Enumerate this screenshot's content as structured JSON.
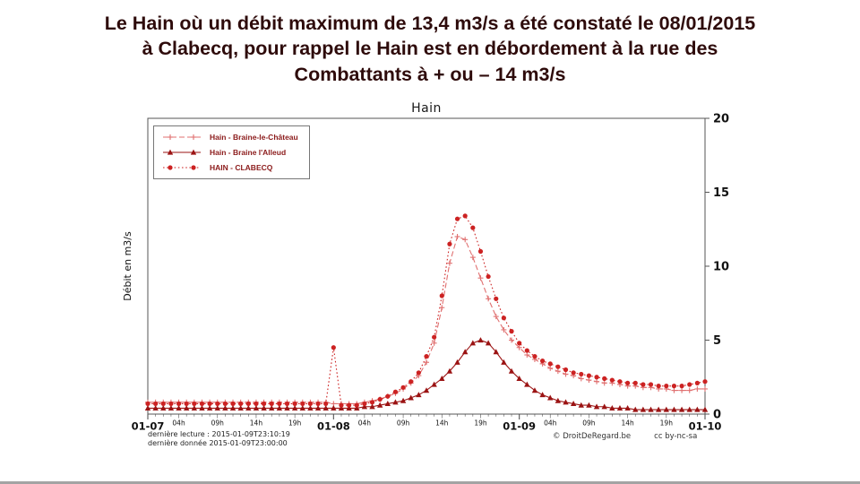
{
  "title": {
    "color": "#2e0b0b",
    "lines": [
      "Le Hain où un débit maximum de 13,4 m3/s a été constaté le 08/01/2015",
      "à Clabecq, pour rappel le Hain est en débordement à la rue des",
      "Combattants à + ou – 14 m3/s"
    ]
  },
  "footer": {
    "last_reading": "dernière lecture : 2015-01-09T23:10:19",
    "last_data": "dernière donnée  2015-01-09T23:00:00",
    "copyright": "© DroitDeRegard.be",
    "license": "cc by-nc-sa"
  },
  "chart_data": {
    "type": "line",
    "title": "Hain",
    "xlabel": "",
    "ylabel": "Débit en m3/s",
    "ylim": [
      0,
      20
    ],
    "x_unit": "hours from 2015-01-07 00:00, one value per hour",
    "x_range_hours": [
      0,
      72
    ],
    "grid": false,
    "legend_position": "top-left",
    "legend_text_color": "#8b1a1a",
    "x_axis": {
      "major_ticks": [
        {
          "label": "01-07",
          "hour": 0
        },
        {
          "label": "01-08",
          "hour": 24
        },
        {
          "label": "01-09",
          "hour": 48
        },
        {
          "label": "01-10",
          "hour": 72
        }
      ],
      "minor_labels": [
        {
          "label": "04h",
          "offset": 4
        },
        {
          "label": "09h",
          "offset": 9
        },
        {
          "label": "14h",
          "offset": 14
        },
        {
          "label": "19h",
          "offset": 19
        }
      ]
    },
    "y_axis": {
      "ticks": [
        0,
        5,
        10,
        15,
        20
      ],
      "side": "right"
    },
    "series": [
      {
        "name": "Hain - Braine-le-Château",
        "color": "#e07070",
        "marker": "plus",
        "line": "dashed",
        "values": [
          0.8,
          0.8,
          0.8,
          0.8,
          0.8,
          0.8,
          0.8,
          0.8,
          0.8,
          0.8,
          0.8,
          0.8,
          0.8,
          0.8,
          0.8,
          0.8,
          0.8,
          0.8,
          0.8,
          0.8,
          0.8,
          0.8,
          0.8,
          0.8,
          0.7,
          0.7,
          0.7,
          0.7,
          0.8,
          0.9,
          1.0,
          1.2,
          1.4,
          1.7,
          2.1,
          2.6,
          3.5,
          4.8,
          7.2,
          10.2,
          12.0,
          11.8,
          10.6,
          9.2,
          7.8,
          6.6,
          5.7,
          5.0,
          4.5,
          4.0,
          3.7,
          3.4,
          3.1,
          2.9,
          2.7,
          2.6,
          2.4,
          2.3,
          2.2,
          2.1,
          2.1,
          2.0,
          1.9,
          1.9,
          1.8,
          1.8,
          1.7,
          1.7,
          1.6,
          1.6,
          1.6,
          1.7,
          1.7
        ]
      },
      {
        "name": "Hain - Braine l'Alleud",
        "color": "#9b1313",
        "marker": "triangle",
        "line": "solid",
        "values": [
          0.4,
          0.4,
          0.4,
          0.4,
          0.4,
          0.4,
          0.4,
          0.4,
          0.4,
          0.4,
          0.4,
          0.4,
          0.4,
          0.4,
          0.4,
          0.4,
          0.4,
          0.4,
          0.4,
          0.4,
          0.4,
          0.4,
          0.4,
          0.4,
          0.4,
          0.4,
          0.4,
          0.4,
          0.5,
          0.5,
          0.6,
          0.7,
          0.8,
          0.9,
          1.1,
          1.3,
          1.6,
          2.0,
          2.4,
          2.9,
          3.5,
          4.2,
          4.8,
          5.0,
          4.8,
          4.2,
          3.5,
          2.9,
          2.4,
          2.0,
          1.6,
          1.3,
          1.1,
          0.9,
          0.8,
          0.7,
          0.6,
          0.6,
          0.5,
          0.5,
          0.4,
          0.4,
          0.4,
          0.3,
          0.3,
          0.3,
          0.3,
          0.3,
          0.3,
          0.3,
          0.3,
          0.3,
          0.3
        ]
      },
      {
        "name": "HAIN - CLABECQ",
        "color": "#cc2222",
        "marker": "circle",
        "line": "dotted",
        "values": [
          0.7,
          0.7,
          0.7,
          0.7,
          0.7,
          0.7,
          0.7,
          0.7,
          0.7,
          0.7,
          0.7,
          0.7,
          0.7,
          0.7,
          0.7,
          0.7,
          0.7,
          0.7,
          0.7,
          0.7,
          0.7,
          0.7,
          0.7,
          0.7,
          4.5,
          0.6,
          0.6,
          0.6,
          0.7,
          0.8,
          1.0,
          1.2,
          1.5,
          1.8,
          2.2,
          2.8,
          3.9,
          5.2,
          8.0,
          11.5,
          13.2,
          13.4,
          12.6,
          11.0,
          9.3,
          7.8,
          6.5,
          5.6,
          4.8,
          4.3,
          3.9,
          3.6,
          3.4,
          3.2,
          3.0,
          2.8,
          2.7,
          2.6,
          2.5,
          2.4,
          2.3,
          2.2,
          2.1,
          2.1,
          2.0,
          2.0,
          1.9,
          1.9,
          1.9,
          1.9,
          2.0,
          2.1,
          2.2
        ]
      }
    ]
  }
}
